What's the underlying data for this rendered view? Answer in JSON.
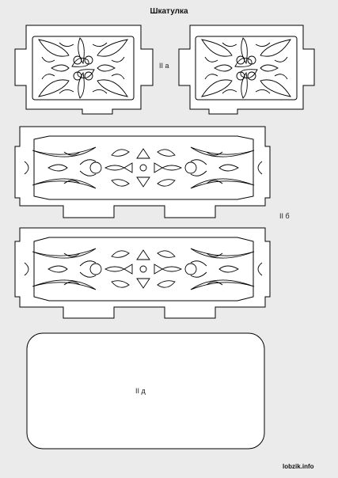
{
  "title": "Шкатулка",
  "labels": {
    "side_panels": "II а",
    "long_panels": "II б",
    "bottom_panel": "II д"
  },
  "footer": {
    "site": "lobzik.info"
  },
  "colors": {
    "background": "#ebebeb",
    "panel_fill": "#ffffff",
    "line": "#000000"
  }
}
